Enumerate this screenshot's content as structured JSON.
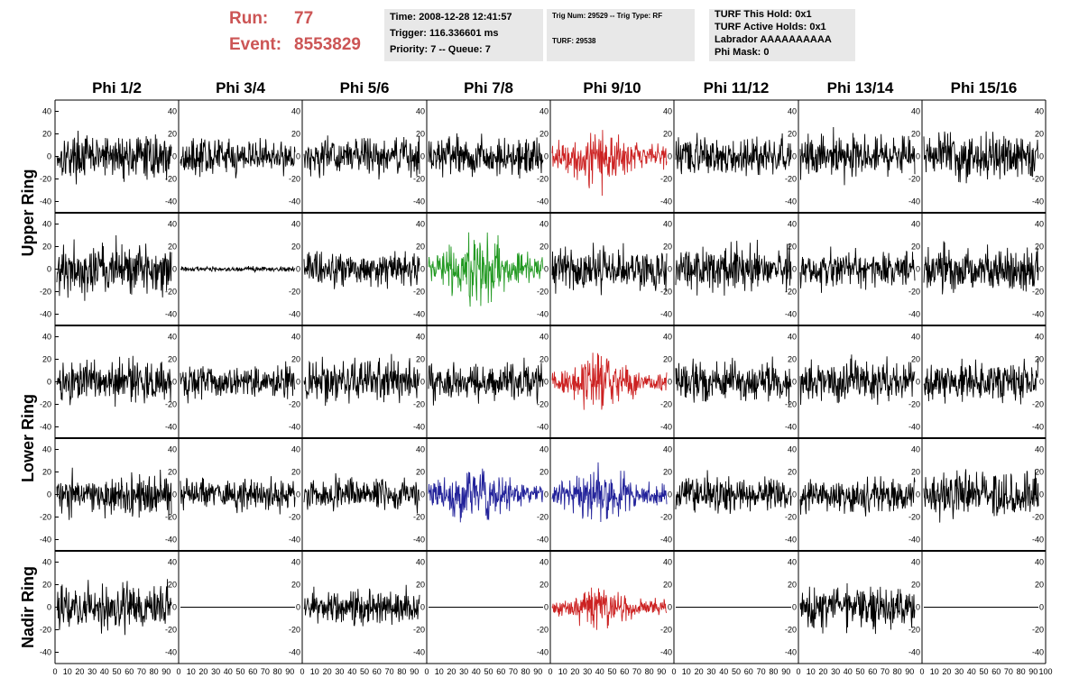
{
  "header": {
    "run_label": "Run:",
    "run_value": "77",
    "event_label": "Event:",
    "event_value": "8553829",
    "time": "Time: 2008-12-28 12:41:57",
    "trigger": "Trigger: 116.336601 ms",
    "priority": "Priority: 7 -- Queue: 7",
    "trig_num": "Trig Num: 29529 -- Trig Type: RF",
    "turf": "TURF: 29538",
    "turf_hold": "TURF This Hold: 0x1",
    "turf_active": "TURF Active Holds: 0x1",
    "labrador": "Labrador AAAAAAAAAA",
    "phi_mask": "Phi Mask: 0"
  },
  "chart_data": {
    "type": "line",
    "title": "",
    "columns": [
      "Phi 1/2",
      "Phi 3/4",
      "Phi 5/6",
      "Phi 7/8",
      "Phi 9/10",
      "Phi 11/12",
      "Phi 13/14",
      "Phi 15/16"
    ],
    "rows": [
      "Upper Ring",
      "Lower Ring",
      "Nadir Ring"
    ],
    "xlim": [
      0,
      100
    ],
    "ylim": [
      -50,
      50
    ],
    "x_ticks": [
      0,
      10,
      20,
      30,
      40,
      50,
      60,
      70,
      80,
      90,
      100
    ],
    "y_ticks": [
      -40,
      -20,
      0,
      20,
      40
    ],
    "grid": false,
    "colors": {
      "default": "#000000",
      "red": "#cc2222",
      "green": "#229922",
      "blue": "#22229a"
    },
    "panels": [
      {
        "band": 0,
        "col": 0,
        "amp": 17,
        "color": "default"
      },
      {
        "band": 0,
        "col": 1,
        "amp": 14,
        "color": "default"
      },
      {
        "band": 0,
        "col": 2,
        "amp": 15,
        "color": "default"
      },
      {
        "band": 0,
        "col": 3,
        "amp": 15,
        "color": "default"
      },
      {
        "band": 0,
        "col": 4,
        "amp": 22,
        "color": "red",
        "burst": true
      },
      {
        "band": 0,
        "col": 5,
        "amp": 15,
        "color": "default"
      },
      {
        "band": 0,
        "col": 6,
        "amp": 17,
        "color": "default"
      },
      {
        "band": 0,
        "col": 7,
        "amp": 18,
        "color": "default"
      },
      {
        "band": 1,
        "col": 0,
        "amp": 21,
        "color": "default"
      },
      {
        "band": 1,
        "col": 1,
        "amp": 2,
        "color": "default"
      },
      {
        "band": 1,
        "col": 2,
        "amp": 14,
        "color": "default"
      },
      {
        "band": 1,
        "col": 3,
        "amp": 25,
        "color": "green",
        "burst": true
      },
      {
        "band": 1,
        "col": 4,
        "amp": 17,
        "color": "default"
      },
      {
        "band": 1,
        "col": 5,
        "amp": 18,
        "color": "default"
      },
      {
        "band": 1,
        "col": 6,
        "amp": 14,
        "color": "default"
      },
      {
        "band": 1,
        "col": 7,
        "amp": 18,
        "color": "default"
      },
      {
        "band": 2,
        "col": 0,
        "amp": 17,
        "color": "default"
      },
      {
        "band": 2,
        "col": 1,
        "amp": 15,
        "color": "default"
      },
      {
        "band": 2,
        "col": 2,
        "amp": 17,
        "color": "default"
      },
      {
        "band": 2,
        "col": 3,
        "amp": 15,
        "color": "default"
      },
      {
        "band": 2,
        "col": 4,
        "amp": 18,
        "color": "red",
        "burst": true
      },
      {
        "band": 2,
        "col": 5,
        "amp": 16,
        "color": "default"
      },
      {
        "band": 2,
        "col": 6,
        "amp": 17,
        "color": "default"
      },
      {
        "band": 2,
        "col": 7,
        "amp": 16,
        "color": "default"
      },
      {
        "band": 3,
        "col": 0,
        "amp": 17,
        "color": "default"
      },
      {
        "band": 3,
        "col": 1,
        "amp": 12,
        "color": "default"
      },
      {
        "band": 3,
        "col": 2,
        "amp": 13,
        "color": "default"
      },
      {
        "band": 3,
        "col": 3,
        "amp": 21,
        "color": "blue",
        "burst": true
      },
      {
        "band": 3,
        "col": 4,
        "amp": 21,
        "color": "blue",
        "burst": true
      },
      {
        "band": 3,
        "col": 5,
        "amp": 15,
        "color": "default"
      },
      {
        "band": 3,
        "col": 6,
        "amp": 15,
        "color": "default"
      },
      {
        "band": 3,
        "col": 7,
        "amp": 18,
        "color": "default"
      },
      {
        "band": 4,
        "col": 0,
        "amp": 17,
        "color": "default"
      },
      {
        "band": 4,
        "col": 1,
        "amp": 0,
        "color": "default"
      },
      {
        "band": 4,
        "col": 2,
        "amp": 13,
        "color": "default"
      },
      {
        "band": 4,
        "col": 3,
        "amp": 0,
        "color": "default"
      },
      {
        "band": 4,
        "col": 4,
        "amp": 15,
        "color": "red",
        "burst": true
      },
      {
        "band": 4,
        "col": 5,
        "amp": 0,
        "color": "default"
      },
      {
        "band": 4,
        "col": 6,
        "amp": 17,
        "color": "default"
      },
      {
        "band": 4,
        "col": 7,
        "amp": 0,
        "color": "default"
      }
    ]
  }
}
